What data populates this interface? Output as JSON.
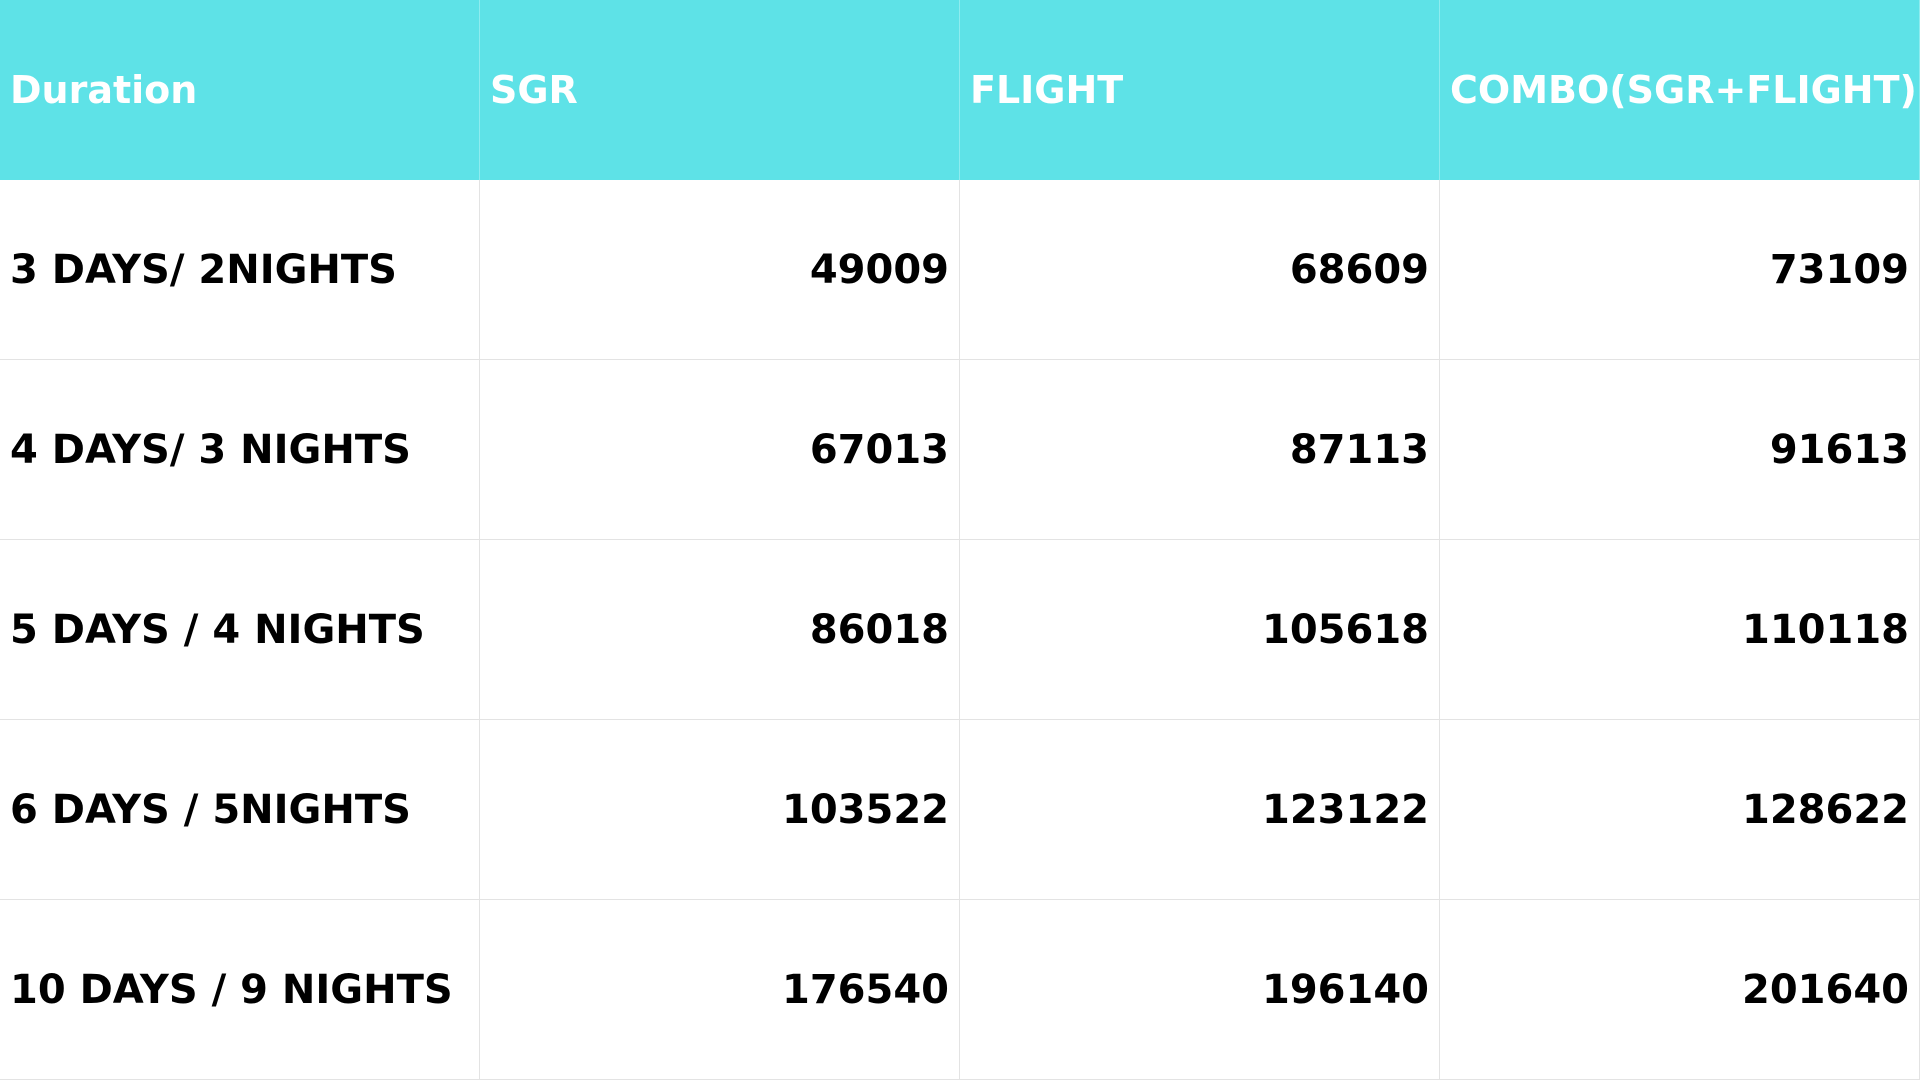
{
  "table": {
    "header": [
      "Duration",
      "SGR",
      "FLIGHT",
      "COMBO(SGR+FLIGHT)"
    ],
    "rows": [
      [
        "3 DAYS/ 2NIGHTS",
        49009,
        68609,
        73109
      ],
      [
        "4 DAYS/ 3 NIGHTS",
        67013,
        87113,
        91613
      ],
      [
        "5 DAYS / 4 NIGHTS",
        86018,
        105618,
        110118
      ],
      [
        "6 DAYS / 5NIGHTS",
        103522,
        123122,
        128622
      ],
      [
        "10 DAYS / 9 NIGHTS",
        176540,
        196140,
        201640
      ]
    ]
  }
}
